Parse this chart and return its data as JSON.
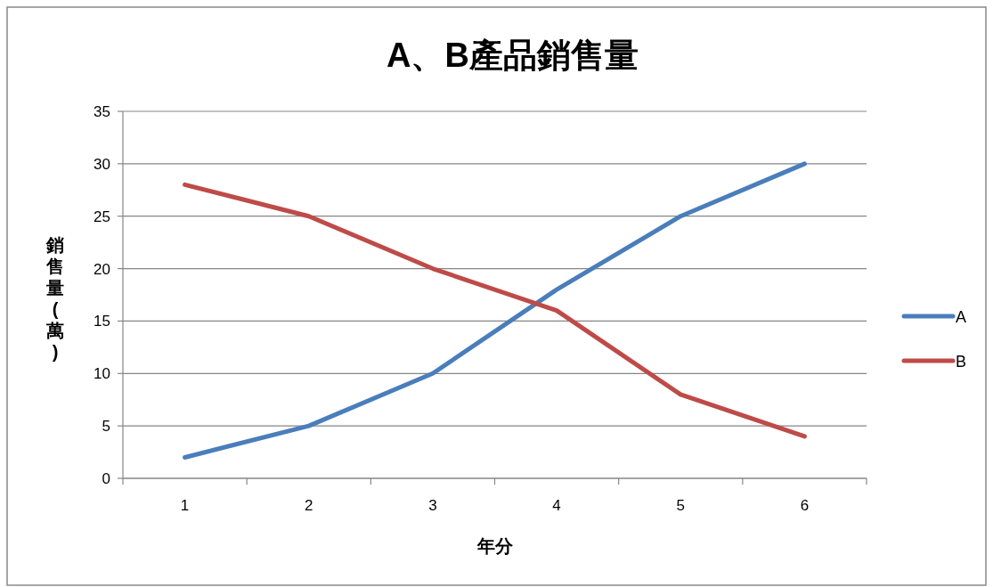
{
  "chart_data": {
    "type": "line",
    "title": "A、B產品銷售量",
    "xlabel": "年分",
    "ylabel": "銷售量(萬)",
    "categories": [
      "1",
      "2",
      "3",
      "4",
      "5",
      "6"
    ],
    "series": [
      {
        "name": "A",
        "color": "#4a7ebb",
        "values": [
          2,
          5,
          10,
          18,
          25,
          30
        ]
      },
      {
        "name": "B",
        "color": "#be4b48",
        "values": [
          28,
          25,
          20,
          16,
          8,
          4
        ]
      }
    ],
    "ylim": [
      0,
      35
    ],
    "yticks": [
      0,
      5,
      10,
      15,
      20,
      25,
      30,
      35
    ],
    "grid": "y",
    "legend": "right",
    "marker": "none",
    "line_style": "solid"
  }
}
